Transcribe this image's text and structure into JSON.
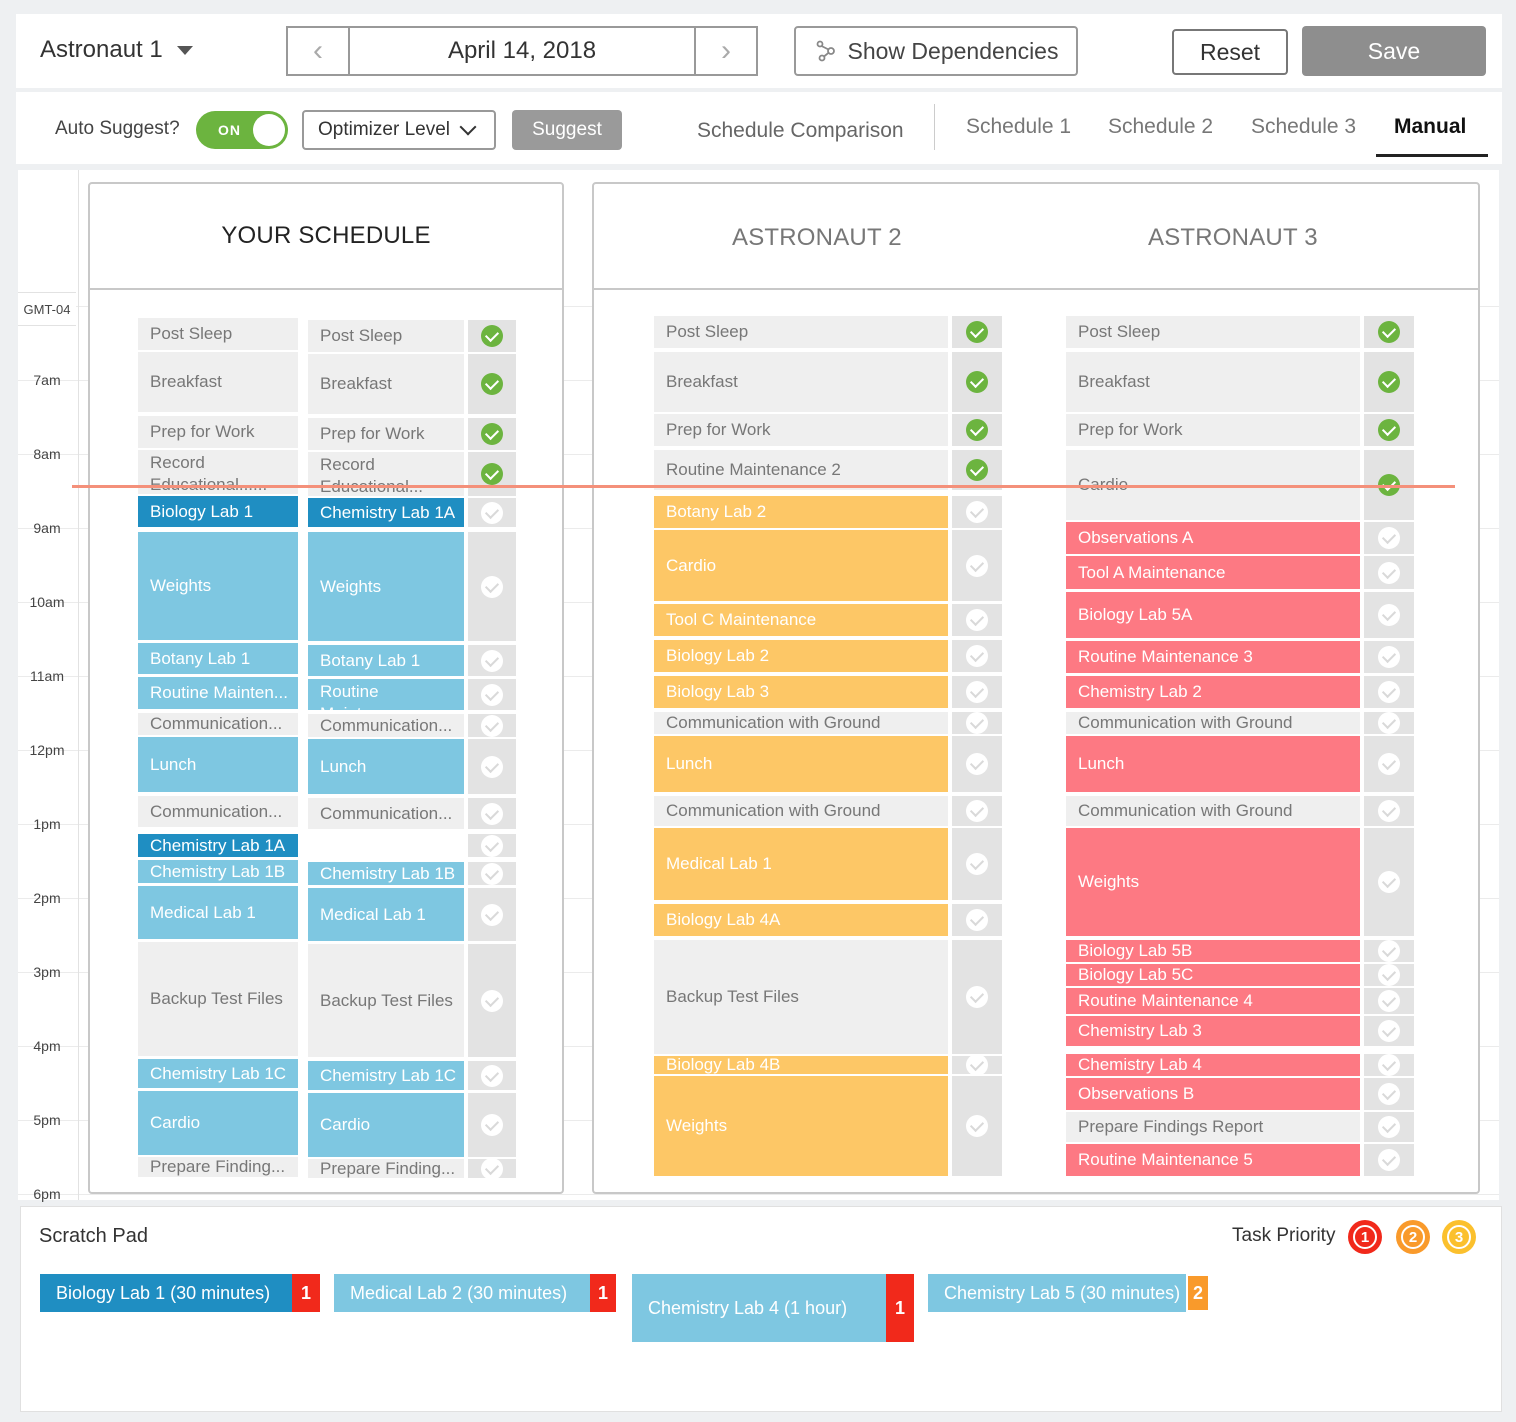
{
  "header": {
    "astronaut": "Astronaut 1",
    "date": "April 14, 2018",
    "show_dependencies": "Show Dependencies",
    "reset": "Reset",
    "save": "Save"
  },
  "subbar": {
    "auto_suggest": "Auto Suggest?",
    "toggle": "ON",
    "optimizer": "Optimizer Level",
    "suggest": "Suggest",
    "schedule_comparison": "Schedule Comparison",
    "tabs": [
      "Schedule 1",
      "Schedule 2",
      "Schedule 3",
      "Manual"
    ],
    "active_tab": "Manual"
  },
  "timezone": "GMT-04",
  "times": [
    "7am",
    "8am",
    "9am",
    "10am",
    "11am",
    "12pm",
    "1pm",
    "2pm",
    "3pm",
    "4pm",
    "5pm",
    "6pm"
  ],
  "panels": {
    "yours": "YOUR SCHEDULE",
    "a2": "ASTRONAUT 2",
    "a3": "ASTRONAUT 3"
  },
  "your_schedule_left": [
    {
      "label": "Post Sleep",
      "color": "gray"
    },
    {
      "label": "Breakfast",
      "color": "gray"
    },
    {
      "label": "Prep for Work",
      "color": "gray"
    },
    {
      "label": "Record Educational......",
      "color": "gray"
    },
    {
      "label": "Biology Lab 1",
      "color": "dblue"
    },
    {
      "label": "Weights",
      "color": "lblue"
    },
    {
      "label": "Botany Lab 1",
      "color": "lblue"
    },
    {
      "label": "Routine Mainten...",
      "color": "lblue"
    },
    {
      "label": "Communication...",
      "color": "gray"
    },
    {
      "label": "Lunch",
      "color": "lblue"
    },
    {
      "label": "Communication...",
      "color": "gray"
    },
    {
      "label": "Chemistry Lab 1A",
      "color": "dblue"
    },
    {
      "label": "Chemistry Lab 1B",
      "color": "lblue"
    },
    {
      "label": "Medical Lab 1",
      "color": "lblue"
    },
    {
      "label": "Backup Test Files",
      "color": "gray"
    },
    {
      "label": "Chemistry Lab 1C",
      "color": "lblue"
    },
    {
      "label": "Cardio",
      "color": "lblue"
    },
    {
      "label": "Prepare Finding...",
      "color": "gray"
    }
  ],
  "your_schedule_right": [
    {
      "label": "Post Sleep",
      "color": "gray",
      "status": "done"
    },
    {
      "label": "Breakfast",
      "color": "gray",
      "status": "done"
    },
    {
      "label": "Prep for Work",
      "color": "gray",
      "status": "done"
    },
    {
      "label": "Record Educational...",
      "color": "gray",
      "status": "done"
    },
    {
      "label": "Chemistry Lab 1A",
      "color": "dblue",
      "status": "pending"
    },
    {
      "label": "Weights",
      "color": "lblue",
      "status": "pending"
    },
    {
      "label": "Botany Lab 1",
      "color": "lblue",
      "status": "pending"
    },
    {
      "label": "Routine Mainten...",
      "color": "lblue",
      "status": "pending"
    },
    {
      "label": "Communication...",
      "color": "gray",
      "status": "pending"
    },
    {
      "label": "Lunch",
      "color": "lblue",
      "status": "pending"
    },
    {
      "label": "Communication...",
      "color": "gray",
      "status": "pending"
    },
    {
      "label": "",
      "color": "none",
      "status": "pending"
    },
    {
      "label": "Chemistry Lab 1B",
      "color": "lblue",
      "status": "pending"
    },
    {
      "label": "Medical Lab 1",
      "color": "lblue",
      "status": "pending"
    },
    {
      "label": "Backup Test Files",
      "color": "gray",
      "status": "pending"
    },
    {
      "label": "Chemistry Lab 1C",
      "color": "lblue",
      "status": "pending"
    },
    {
      "label": "Cardio",
      "color": "lblue",
      "status": "pending"
    },
    {
      "label": "Prepare Finding...",
      "color": "gray",
      "status": "pending"
    }
  ],
  "astronaut2": [
    {
      "label": "Post Sleep",
      "color": "gray",
      "status": "done"
    },
    {
      "label": "Breakfast",
      "color": "gray",
      "status": "done"
    },
    {
      "label": "Prep for Work",
      "color": "gray",
      "status": "done"
    },
    {
      "label": "Routine Maintenance 2",
      "color": "gray",
      "status": "done"
    },
    {
      "label": "Botany Lab 2",
      "color": "yel",
      "status": "pending"
    },
    {
      "label": "Cardio",
      "color": "yel",
      "status": "pending"
    },
    {
      "label": "Tool C Maintenance",
      "color": "yel",
      "status": "pending"
    },
    {
      "label": "Biology Lab 2",
      "color": "yel",
      "status": "pending"
    },
    {
      "label": "Biology Lab 3",
      "color": "yel",
      "status": "pending"
    },
    {
      "label": "Communication with Ground",
      "color": "gray",
      "status": "pending"
    },
    {
      "label": "Lunch",
      "color": "yel",
      "status": "pending"
    },
    {
      "label": "Communication with Ground",
      "color": "gray",
      "status": "pending"
    },
    {
      "label": "Medical Lab 1",
      "color": "yel",
      "status": "pending"
    },
    {
      "label": "Biology Lab 4A",
      "color": "yel",
      "status": "pending"
    },
    {
      "label": "Backup Test Files",
      "color": "gray",
      "status": "pending"
    },
    {
      "label": "Biology Lab 4B",
      "color": "yel",
      "status": "pending"
    },
    {
      "label": "Weights",
      "color": "yel",
      "status": "pending"
    }
  ],
  "astronaut3": [
    {
      "label": "Post Sleep",
      "color": "gray",
      "status": "done"
    },
    {
      "label": "Breakfast",
      "color": "gray",
      "status": "done"
    },
    {
      "label": "Prep for Work",
      "color": "gray",
      "status": "done"
    },
    {
      "label": "Cardio",
      "color": "gray",
      "status": "done"
    },
    {
      "label": "Observations A",
      "color": "red",
      "status": "pending"
    },
    {
      "label": "Tool A Maintenance",
      "color": "red",
      "status": "pending"
    },
    {
      "label": "Biology Lab 5A",
      "color": "red",
      "status": "pending"
    },
    {
      "label": "Routine Maintenance 3",
      "color": "red",
      "status": "pending"
    },
    {
      "label": "Chemistry Lab 2",
      "color": "red",
      "status": "pending"
    },
    {
      "label": "Communication with Ground",
      "color": "gray",
      "status": "pending"
    },
    {
      "label": "Lunch",
      "color": "red",
      "status": "pending"
    },
    {
      "label": "Communication with Ground",
      "color": "gray",
      "status": "pending"
    },
    {
      "label": "Weights",
      "color": "red",
      "status": "pending"
    },
    {
      "label": "Biology Lab 5B",
      "color": "red",
      "status": "pending"
    },
    {
      "label": "Biology Lab 5C",
      "color": "red",
      "status": "pending"
    },
    {
      "label": "Routine Maintenance 4",
      "color": "red",
      "status": "pending"
    },
    {
      "label": "Chemistry Lab 3",
      "color": "red",
      "status": "pending"
    },
    {
      "label": "Chemistry Lab 4",
      "color": "red",
      "status": "pending"
    },
    {
      "label": "Observations B",
      "color": "red",
      "status": "pending"
    },
    {
      "label": "Prepare Findings Report",
      "color": "gray",
      "status": "pending"
    },
    {
      "label": "Routine Maintenance 5",
      "color": "red",
      "status": "pending"
    }
  ],
  "scratch_pad": {
    "title": "Scratch Pad",
    "task_priority": "Task Priority",
    "priorities": [
      "1",
      "2",
      "3"
    ],
    "priority_colors": [
      "#f1291b",
      "#f99a2b",
      "#fbc02d"
    ],
    "cards": [
      {
        "label": "Biology Lab 1 (30 minutes)",
        "priority": "1"
      },
      {
        "label": "Medical Lab 2 (30 minutes)",
        "priority": "1"
      },
      {
        "label": "Chemistry Lab 4 (1 hour)",
        "priority": "1"
      },
      {
        "label": "Chemistry Lab 5  (30 minutes)",
        "priority": "2"
      }
    ]
  }
}
